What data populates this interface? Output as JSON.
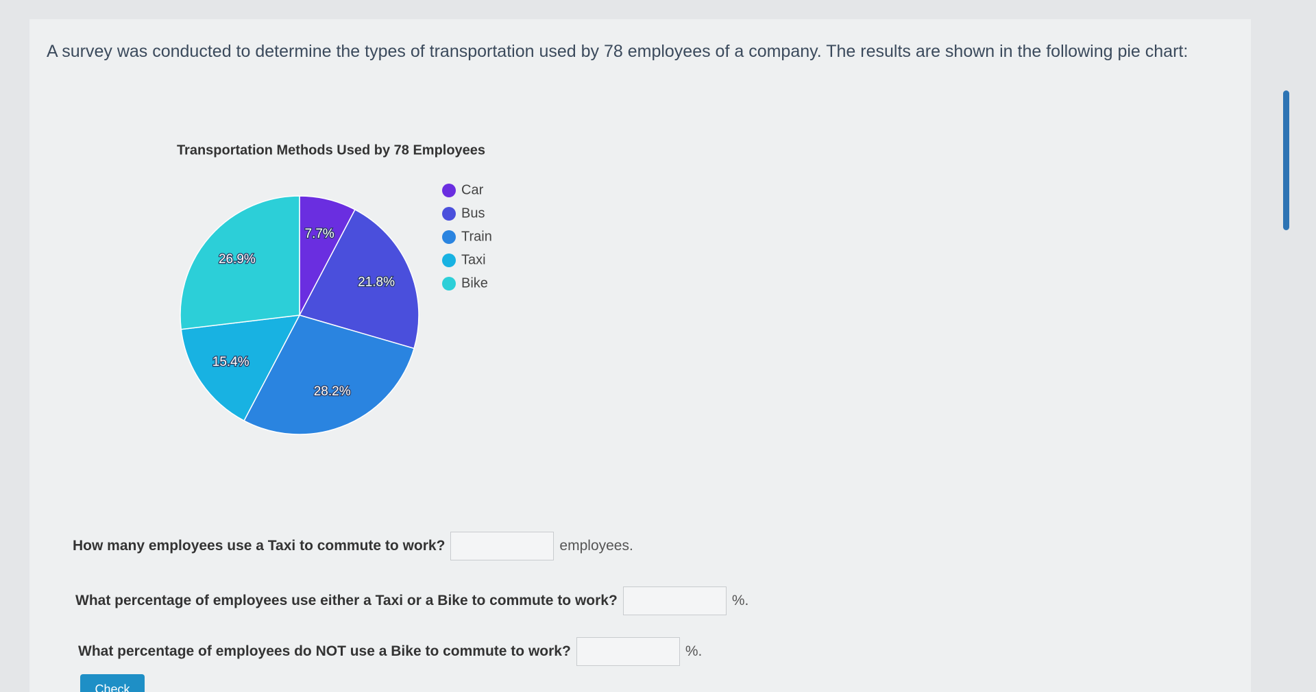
{
  "header": {
    "text": "A survey was conducted to determine the types of transportation used by 78 employees of a company. The results are shown in the following pie chart:"
  },
  "chart_data": {
    "type": "pie",
    "title": "Transportation Methods Used by 78 Employees",
    "categories": [
      "Car",
      "Bus",
      "Train",
      "Taxi",
      "Bike"
    ],
    "values": [
      7.7,
      21.8,
      28.2,
      15.4,
      26.9
    ],
    "value_labels": [
      "7.7%",
      "21.8%",
      "28.2%",
      "15.4%",
      "26.9%"
    ],
    "colors": [
      "#6a2ee0",
      "#4a4fdc",
      "#2a84e0",
      "#18b2e2",
      "#2ccfd8"
    ],
    "legend": "right"
  },
  "questions": [
    {
      "text": "How many employees use a Taxi to commute to work?",
      "suffix": "employees."
    },
    {
      "text": "What percentage of employees use either a Taxi or a Bike to commute to work?",
      "suffix": "%."
    },
    {
      "text": "What percentage of employees do NOT use a Bike to commute to work?",
      "suffix": "%."
    }
  ],
  "button": "Check"
}
